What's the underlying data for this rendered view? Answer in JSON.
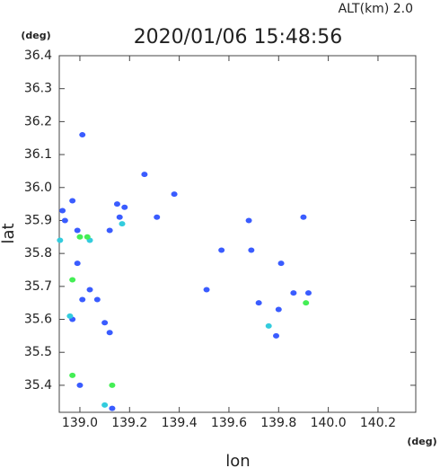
{
  "chart_data": {
    "type": "scatter",
    "title": "2020/01/06 15:48:56",
    "subtitle": "ALT(km)  2.0",
    "x_label": "lon",
    "y_label": "lat",
    "x_unit": "(deg)",
    "y_unit": "(deg)",
    "xlim": [
      138.917,
      140.352
    ],
    "ylim": [
      35.318,
      36.4
    ],
    "xticks": [
      {
        "value": 139.0,
        "label": "139.0"
      },
      139.2,
      139.4,
      139.6,
      139.8,
      {
        "value": 140.0,
        "label": "140.0"
      },
      140.2
    ],
    "yticks": [
      {
        "value": 35.4,
        "label": "35.4"
      },
      35.5,
      35.6,
      35.7,
      35.8,
      35.9,
      {
        "value": 36.0,
        "label": "36.0"
      },
      36.1,
      36.2,
      36.3,
      36.4
    ],
    "grid": false,
    "series": [
      {
        "color": "#3a5cff",
        "x": [
          139.01,
          139.26,
          139.38,
          139.15,
          139.16,
          139.31,
          138.93,
          138.97,
          138.99,
          139.12,
          139.57,
          139.69,
          138.99,
          139.81,
          139.51,
          139.04,
          139.07,
          139.01,
          139.72,
          139.8,
          139.86,
          139.92,
          139.1,
          139.12,
          139.79,
          138.97,
          139.0,
          139.13,
          138.94,
          139.9,
          139.18,
          139.68
        ],
        "y": [
          36.16,
          36.04,
          35.98,
          35.95,
          35.91,
          35.91,
          35.93,
          35.96,
          35.87,
          35.87,
          35.81,
          35.81,
          35.77,
          35.77,
          35.69,
          35.69,
          35.66,
          35.66,
          35.65,
          35.63,
          35.68,
          35.68,
          35.59,
          35.56,
          35.55,
          35.6,
          35.4,
          35.33,
          35.9,
          35.91,
          35.94,
          35.9
        ]
      },
      {
        "color": "#33ccdd",
        "x": [
          139.1,
          138.96,
          139.76,
          138.92,
          139.04,
          139.17
        ],
        "y": [
          35.34,
          35.61,
          35.58,
          35.84,
          35.84,
          35.89
        ]
      },
      {
        "color": "#44ee55",
        "x": [
          139.0,
          139.03,
          138.97,
          138.97,
          139.13,
          139.91
        ],
        "y": [
          35.85,
          35.85,
          35.72,
          35.43,
          35.4,
          35.65
        ]
      }
    ]
  }
}
